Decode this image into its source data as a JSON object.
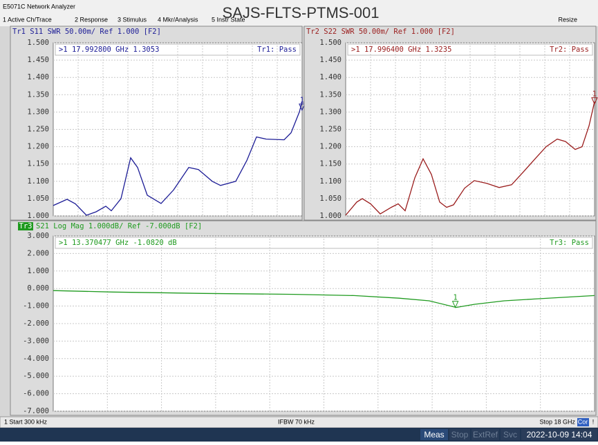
{
  "window_title": "E5071C Network Analyzer",
  "overlay_title": "SAJS-FLTS-PTMS-001",
  "menu": [
    "1 Active Ch/Trace",
    "2 Response",
    "3 Stimulus",
    "4 Mkr/Analysis",
    "5 Instr State"
  ],
  "resize": "Resize",
  "traces": [
    {
      "header": "Tr1 S11 SWR 50.00m/ Ref 1.000 [F2]",
      "marker_readout": ">1  17.992800 GHz  1.3053",
      "limit_status": "Tr1: Pass",
      "color": "#1c1c96",
      "xlim": [
        0.0003,
        18
      ],
      "ylim": [
        1,
        1.5
      ],
      "yticks": [
        {
          "value": 1,
          "label": "1.000"
        },
        {
          "value": 1.05,
          "label": "1.050"
        },
        {
          "value": 1.1,
          "label": "1.100"
        },
        {
          "value": 1.15,
          "label": "1.150"
        },
        {
          "value": 1.2,
          "label": "1.200"
        },
        {
          "value": 1.25,
          "label": "1.250"
        },
        {
          "value": 1.3,
          "label": "1.300"
        },
        {
          "value": 1.35,
          "label": "1.350"
        },
        {
          "value": 1.4,
          "label": "1.400"
        },
        {
          "value": 1.45,
          "label": "1.450"
        },
        {
          "value": 1.5,
          "label": "1.500"
        }
      ],
      "x": [
        0.0003,
        1.0,
        1.6,
        2.4,
        3.1,
        3.8,
        4.2,
        4.9,
        5.6,
        6.1,
        6.8,
        7.8,
        8.7,
        9.8,
        10.5,
        11.5,
        12.1,
        13.2,
        14.0,
        14.7,
        15.4,
        16.7,
        17.2,
        17.8,
        18.0
      ],
      "values": [
        1.03,
        1.048,
        1.035,
        1.002,
        1.012,
        1.028,
        1.015,
        1.05,
        1.168,
        1.14,
        1.06,
        1.036,
        1.075,
        1.14,
        1.134,
        1.1,
        1.088,
        1.1,
        1.16,
        1.228,
        1.222,
        1.22,
        1.24,
        1.3,
        1.33
      ],
      "marker": {
        "label": "1",
        "x": 17.9928,
        "value": 1.3053
      }
    },
    {
      "header": "Tr2 S22 SWR 50.00m/ Ref 1.000 [F2]",
      "marker_readout": ">1  17.996400 GHz  1.3235",
      "limit_status": "Tr2: Pass",
      "color": "#9a1c1c",
      "xlim": [
        0.0003,
        18
      ],
      "ylim": [
        1,
        1.5
      ],
      "yticks": [
        {
          "value": 1,
          "label": "1.000"
        },
        {
          "value": 1.05,
          "label": "1.050"
        },
        {
          "value": 1.1,
          "label": "1.100"
        },
        {
          "value": 1.15,
          "label": "1.150"
        },
        {
          "value": 1.2,
          "label": "1.200"
        },
        {
          "value": 1.25,
          "label": "1.250"
        },
        {
          "value": 1.3,
          "label": "1.300"
        },
        {
          "value": 1.35,
          "label": "1.350"
        },
        {
          "value": 1.4,
          "label": "1.400"
        },
        {
          "value": 1.45,
          "label": "1.450"
        },
        {
          "value": 1.5,
          "label": "1.500"
        }
      ],
      "x": [
        0.0003,
        0.8,
        1.2,
        1.8,
        2.5,
        3.3,
        3.8,
        4.3,
        5.0,
        5.6,
        6.2,
        6.8,
        7.3,
        7.8,
        8.6,
        9.3,
        10.2,
        11.1,
        12.0,
        12.8,
        13.7,
        14.5,
        15.3,
        15.9,
        16.6,
        17.1,
        17.6,
        18.0
      ],
      "values": [
        1.002,
        1.04,
        1.05,
        1.035,
        1.006,
        1.025,
        1.035,
        1.015,
        1.11,
        1.165,
        1.12,
        1.04,
        1.025,
        1.032,
        1.08,
        1.102,
        1.094,
        1.082,
        1.09,
        1.125,
        1.165,
        1.2,
        1.222,
        1.215,
        1.192,
        1.2,
        1.26,
        1.33
      ],
      "marker": {
        "label": "1",
        "x": 17.9964,
        "value": 1.3235
      }
    },
    {
      "badge": "Tr3",
      "header": "S21 Log Mag 1.000dB/ Ref -7.000dB [F2]",
      "marker_readout": ">1  13.370477 GHz -1.0820 dB",
      "limit_status": "Tr3: Pass",
      "color": "#1e9a1e",
      "xlim": [
        0.0003,
        18
      ],
      "ylim": [
        -7,
        3
      ],
      "yticks": [
        {
          "value": -7,
          "label": "-7.000"
        },
        {
          "value": -6,
          "label": "-6.000"
        },
        {
          "value": -5,
          "label": "-5.000"
        },
        {
          "value": -4,
          "label": "-4.000"
        },
        {
          "value": -3,
          "label": "-3.000"
        },
        {
          "value": -2,
          "label": "-2.000"
        },
        {
          "value": -1,
          "label": "-1.000"
        },
        {
          "value": 0,
          "label": "0.000"
        },
        {
          "value": 1,
          "label": "1.000"
        },
        {
          "value": 2,
          "label": "2.000"
        },
        {
          "value": 3,
          "label": "3.000"
        }
      ],
      "x": [
        0.0003,
        2,
        5,
        8,
        10,
        11.5,
        12.5,
        13.4,
        14,
        15,
        16,
        17,
        18
      ],
      "values": [
        -0.12,
        -0.2,
        -0.28,
        -0.33,
        -0.4,
        -0.55,
        -0.7,
        -1.08,
        -0.9,
        -0.7,
        -0.6,
        -0.5,
        -0.4
      ],
      "marker": {
        "label": "1",
        "x": 13.370477,
        "value": -1.082
      }
    }
  ],
  "status_bar": {
    "start": "1  Start 300 kHz",
    "ifbw": "IFBW 70 kHz",
    "stop": "Stop 18 GHz",
    "cor": "Cor",
    "alert": "!"
  },
  "bottom_bar": [
    "Meas",
    "Stop",
    "ExtRef",
    "Svc",
    "2022-10-09 14:04"
  ]
}
